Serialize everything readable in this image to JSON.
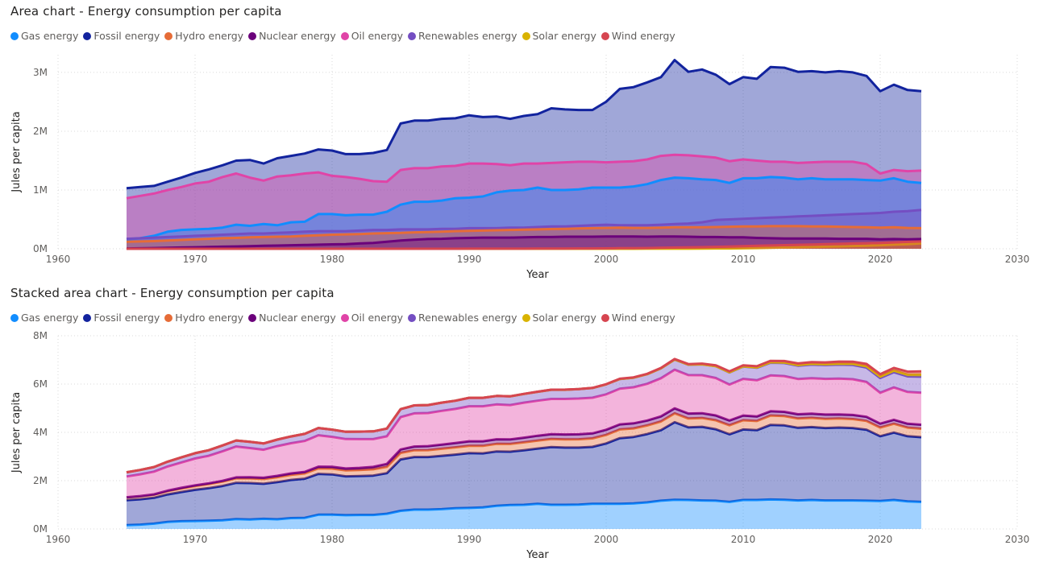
{
  "chart_data": [
    {
      "type": "area",
      "title": "Area chart - Energy consumption per capita",
      "xlabel": "Year",
      "ylabel": "Jules per capita",
      "xlim": [
        1960,
        2030
      ],
      "ylim": [
        0,
        3300000
      ],
      "x_ticks": [
        "1960",
        "1970",
        "1980",
        "1990",
        "2000",
        "2010",
        "2020",
        "2030"
      ],
      "y_ticks": [
        {
          "value": 0,
          "label": "0M"
        },
        {
          "value": 1000000,
          "label": "1M"
        },
        {
          "value": 2000000,
          "label": "2M"
        },
        {
          "value": 3000000,
          "label": "3M"
        }
      ],
      "grid": "dotted",
      "legend_position": "top-left",
      "stacked": false,
      "x": [
        1965,
        1966,
        1967,
        1968,
        1969,
        1970,
        1971,
        1972,
        1973,
        1974,
        1975,
        1976,
        1977,
        1978,
        1979,
        1980,
        1981,
        1982,
        1983,
        1984,
        1985,
        1986,
        1987,
        1988,
        1989,
        1990,
        1991,
        1992,
        1993,
        1994,
        1995,
        1996,
        1997,
        1998,
        1999,
        2000,
        2001,
        2002,
        2003,
        2004,
        2005,
        2006,
        2007,
        2008,
        2009,
        2010,
        2011,
        2012,
        2013,
        2014,
        2015,
        2016,
        2017,
        2018,
        2019,
        2020,
        2021,
        2022,
        2023
      ],
      "series": [
        {
          "name": "Fossil energy",
          "color": "#12239e",
          "values": [
            1030000,
            1050000,
            1070000,
            1140000,
            1210000,
            1290000,
            1350000,
            1420000,
            1500000,
            1510000,
            1450000,
            1540000,
            1580000,
            1620000,
            1690000,
            1670000,
            1610000,
            1610000,
            1630000,
            1680000,
            2130000,
            2180000,
            2180000,
            2210000,
            2220000,
            2270000,
            2240000,
            2250000,
            2210000,
            2260000,
            2290000,
            2390000,
            2370000,
            2360000,
            2360000,
            2500000,
            2720000,
            2750000,
            2830000,
            2920000,
            3210000,
            3010000,
            3050000,
            2960000,
            2800000,
            2920000,
            2890000,
            3090000,
            3080000,
            3010000,
            3020000,
            3000000,
            3020000,
            3000000,
            2940000,
            2680000,
            2790000,
            2700000,
            2680000
          ]
        },
        {
          "name": "Oil energy",
          "color": "#e044a7",
          "values": [
            860000,
            900000,
            940000,
            1000000,
            1050000,
            1110000,
            1140000,
            1220000,
            1280000,
            1210000,
            1160000,
            1230000,
            1250000,
            1280000,
            1300000,
            1240000,
            1220000,
            1190000,
            1150000,
            1140000,
            1340000,
            1370000,
            1370000,
            1400000,
            1410000,
            1450000,
            1450000,
            1440000,
            1420000,
            1450000,
            1450000,
            1460000,
            1470000,
            1480000,
            1480000,
            1470000,
            1480000,
            1490000,
            1520000,
            1580000,
            1600000,
            1590000,
            1570000,
            1550000,
            1490000,
            1520000,
            1500000,
            1480000,
            1480000,
            1460000,
            1470000,
            1480000,
            1480000,
            1480000,
            1440000,
            1280000,
            1340000,
            1320000,
            1330000
          ]
        },
        {
          "name": "Gas energy",
          "color": "#118dff",
          "values": [
            160000,
            180000,
            220000,
            290000,
            320000,
            330000,
            340000,
            360000,
            410000,
            390000,
            420000,
            400000,
            450000,
            460000,
            590000,
            590000,
            570000,
            580000,
            580000,
            630000,
            750000,
            800000,
            800000,
            820000,
            860000,
            870000,
            890000,
            960000,
            990000,
            1000000,
            1040000,
            1000000,
            1000000,
            1010000,
            1040000,
            1040000,
            1040000,
            1060000,
            1100000,
            1170000,
            1210000,
            1200000,
            1180000,
            1170000,
            1120000,
            1200000,
            1200000,
            1220000,
            1210000,
            1180000,
            1200000,
            1180000,
            1180000,
            1180000,
            1170000,
            1160000,
            1200000,
            1140000,
            1120000
          ]
        },
        {
          "name": "Renewables energy",
          "color": "#744ec2",
          "values": [
            170000,
            180000,
            190000,
            200000,
            210000,
            220000,
            230000,
            240000,
            250000,
            260000,
            260000,
            270000,
            280000,
            290000,
            300000,
            300000,
            300000,
            310000,
            320000,
            320000,
            330000,
            330000,
            330000,
            340000,
            340000,
            350000,
            350000,
            350000,
            360000,
            360000,
            370000,
            380000,
            380000,
            390000,
            400000,
            410000,
            400000,
            400000,
            400000,
            410000,
            420000,
            430000,
            450000,
            490000,
            500000,
            510000,
            520000,
            530000,
            540000,
            550000,
            560000,
            570000,
            580000,
            590000,
            600000,
            610000,
            630000,
            640000,
            660000
          ]
        },
        {
          "name": "Hydro energy",
          "color": "#e66c37",
          "values": [
            120000,
            125000,
            130000,
            140000,
            150000,
            160000,
            170000,
            180000,
            185000,
            195000,
            200000,
            205000,
            210000,
            220000,
            230000,
            240000,
            245000,
            250000,
            260000,
            265000,
            270000,
            280000,
            285000,
            290000,
            300000,
            305000,
            310000,
            315000,
            320000,
            325000,
            330000,
            335000,
            340000,
            345000,
            350000,
            355000,
            360000,
            355000,
            355000,
            360000,
            365000,
            365000,
            365000,
            370000,
            375000,
            380000,
            380000,
            385000,
            385000,
            385000,
            380000,
            380000,
            375000,
            370000,
            365000,
            360000,
            365000,
            355000,
            350000
          ]
        },
        {
          "name": "Nuclear energy",
          "color": "#6b007b",
          "values": [
            5000,
            8000,
            12000,
            18000,
            22000,
            26000,
            30000,
            35000,
            40000,
            45000,
            50000,
            55000,
            60000,
            65000,
            70000,
            75000,
            80000,
            90000,
            100000,
            120000,
            140000,
            155000,
            165000,
            170000,
            180000,
            185000,
            190000,
            190000,
            190000,
            195000,
            200000,
            200000,
            205000,
            205000,
            205000,
            210000,
            210000,
            210000,
            205000,
            210000,
            210000,
            205000,
            200000,
            200000,
            195000,
            195000,
            185000,
            180000,
            175000,
            175000,
            175000,
            175000,
            170000,
            170000,
            170000,
            160000,
            165000,
            160000,
            165000
          ]
        },
        {
          "name": "Solar energy",
          "color": "#d9b300",
          "values": [
            0,
            0,
            0,
            0,
            0,
            0,
            0,
            0,
            0,
            0,
            0,
            0,
            0,
            0,
            0,
            0,
            0,
            0,
            0,
            0,
            0,
            0,
            0,
            0,
            0,
            0,
            0,
            0,
            0,
            0,
            0,
            0,
            0,
            0,
            0,
            0,
            0,
            0,
            1000,
            1000,
            2000,
            2000,
            3000,
            5000,
            6000,
            8000,
            12000,
            18000,
            22000,
            26000,
            30000,
            35000,
            40000,
            46000,
            52000,
            60000,
            70000,
            80000,
            92000
          ]
        },
        {
          "name": "Wind energy",
          "color": "#d64550",
          "values": [
            0,
            0,
            0,
            0,
            0,
            0,
            0,
            0,
            0,
            0,
            0,
            0,
            0,
            0,
            0,
            0,
            0,
            0,
            0,
            0,
            0,
            0,
            0,
            0,
            0,
            1000,
            1000,
            1000,
            2000,
            2000,
            3000,
            3000,
            4000,
            5000,
            6000,
            7000,
            9000,
            11000,
            13000,
            16000,
            20000,
            24000,
            28000,
            33000,
            38000,
            44000,
            50000,
            56000,
            62000,
            67000,
            72000,
            78000,
            84000,
            90000,
            95000,
            100000,
            108000,
            118000,
            125000
          ]
        }
      ]
    },
    {
      "type": "area",
      "title": "Stacked area chart - Energy consumption per capita",
      "xlabel": "Year",
      "ylabel": "Jules per capita",
      "xlim": [
        1960,
        2030
      ],
      "ylim": [
        0,
        8000000
      ],
      "x_ticks": [
        "1960",
        "1970",
        "1980",
        "1990",
        "2000",
        "2010",
        "2020",
        "2030"
      ],
      "y_ticks": [
        {
          "value": 0,
          "label": "0M"
        },
        {
          "value": 2000000,
          "label": "2M"
        },
        {
          "value": 4000000,
          "label": "4M"
        },
        {
          "value": 6000000,
          "label": "6M"
        },
        {
          "value": 8000000,
          "label": "8M"
        }
      ],
      "grid": "dotted",
      "legend_position": "top-left",
      "stacked": true,
      "stack_order": [
        "Gas energy",
        "Fossil energy",
        "Hydro energy",
        "Nuclear energy",
        "Oil energy",
        "Renewables energy",
        "Solar energy",
        "Wind energy"
      ]
    }
  ],
  "legend": [
    {
      "name": "Gas energy",
      "color": "#118dff"
    },
    {
      "name": "Fossil energy",
      "color": "#12239e"
    },
    {
      "name": "Hydro energy",
      "color": "#e66c37"
    },
    {
      "name": "Nuclear energy",
      "color": "#6b007b"
    },
    {
      "name": "Oil energy",
      "color": "#e044a7"
    },
    {
      "name": "Renewables energy",
      "color": "#744ec2"
    },
    {
      "name": "Solar energy",
      "color": "#d9b300"
    },
    {
      "name": "Wind energy",
      "color": "#d64550"
    }
  ]
}
